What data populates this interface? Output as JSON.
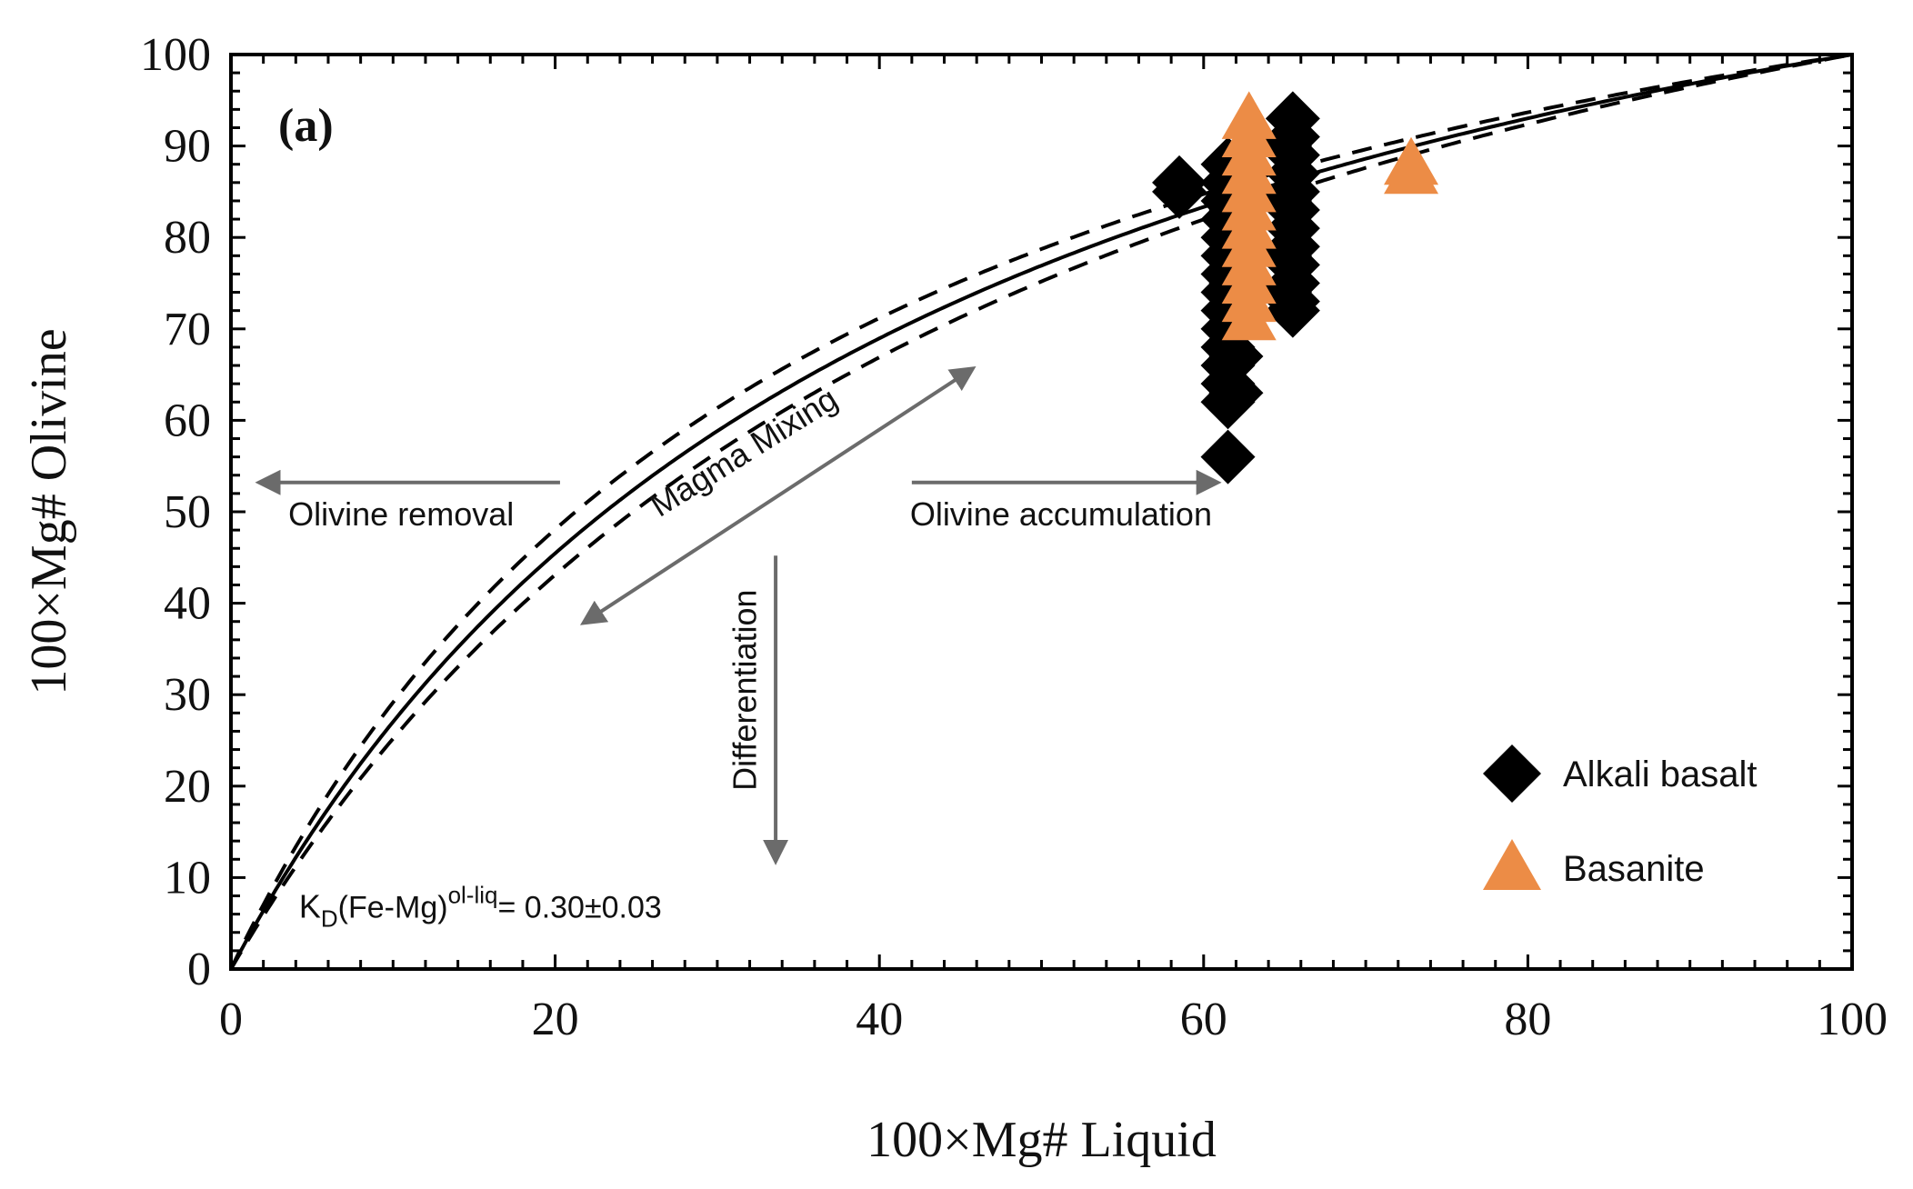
{
  "chart_data": {
    "type": "scatter",
    "panel_label": "(a)",
    "xlabel": "100×Mg# Liquid",
    "ylabel": "100×Mg# Olivine",
    "xlim": [
      0,
      100
    ],
    "ylim": [
      0,
      100
    ],
    "xticks": [
      0,
      20,
      40,
      60,
      80,
      100
    ],
    "yticks": [
      0,
      10,
      20,
      30,
      40,
      50,
      60,
      70,
      80,
      90,
      100
    ],
    "grid": false,
    "legend_position": "bottom-right",
    "kd": {
      "center": 0.3,
      "low": 0.27,
      "high": 0.33
    },
    "kd_label": {
      "prefix": "K",
      "sub": "D",
      "mid": "(Fe-Mg)",
      "sup": "ol-liq",
      "suffix": "= 0.30±0.03"
    },
    "annotations": {
      "olivine_removal": "Olivine removal",
      "magma_mixing": "Magma Mixing",
      "olivine_accumulation": "Olivine accumulation",
      "differentiation": "Differentiation"
    },
    "series": [
      {
        "name": "Alkali basalt",
        "marker": "diamond",
        "color": "#000000",
        "points": [
          [
            58.5,
            86
          ],
          [
            58.5,
            85
          ],
          [
            61.5,
            88
          ],
          [
            61.5,
            86
          ],
          [
            61.5,
            84
          ],
          [
            61.5,
            82
          ],
          [
            61.5,
            80
          ],
          [
            61.5,
            78
          ],
          [
            61.5,
            76
          ],
          [
            61.5,
            74
          ],
          [
            61.5,
            72
          ],
          [
            61.5,
            70
          ],
          [
            61.5,
            68
          ],
          [
            61.5,
            66
          ],
          [
            61.5,
            64
          ],
          [
            61.5,
            62
          ],
          [
            61.5,
            56
          ],
          [
            62.0,
            83
          ],
          [
            62.0,
            75
          ],
          [
            62.0,
            67
          ],
          [
            62.0,
            63
          ],
          [
            65.5,
            93
          ],
          [
            65.5,
            91
          ],
          [
            65.5,
            89
          ],
          [
            65.5,
            87
          ],
          [
            65.5,
            85
          ],
          [
            65.5,
            83
          ],
          [
            65.5,
            81
          ],
          [
            65.5,
            79
          ],
          [
            65.5,
            77
          ],
          [
            65.5,
            75
          ],
          [
            65.5,
            73
          ],
          [
            65.5,
            72
          ],
          [
            65.0,
            90
          ],
          [
            65.0,
            84
          ],
          [
            65.0,
            78
          ],
          [
            65.0,
            74
          ]
        ]
      },
      {
        "name": "Basanite",
        "color": "#ec8c46",
        "marker": "triangle",
        "points": [
          [
            62.8,
            93
          ],
          [
            62.8,
            91
          ],
          [
            62.8,
            89
          ],
          [
            62.8,
            87
          ],
          [
            62.8,
            85
          ],
          [
            62.8,
            83
          ],
          [
            62.8,
            81
          ],
          [
            62.8,
            79
          ],
          [
            62.8,
            77
          ],
          [
            62.8,
            75
          ],
          [
            62.8,
            73
          ],
          [
            62.8,
            71
          ],
          [
            72.8,
            88
          ],
          [
            72.8,
            87
          ]
        ]
      }
    ]
  }
}
